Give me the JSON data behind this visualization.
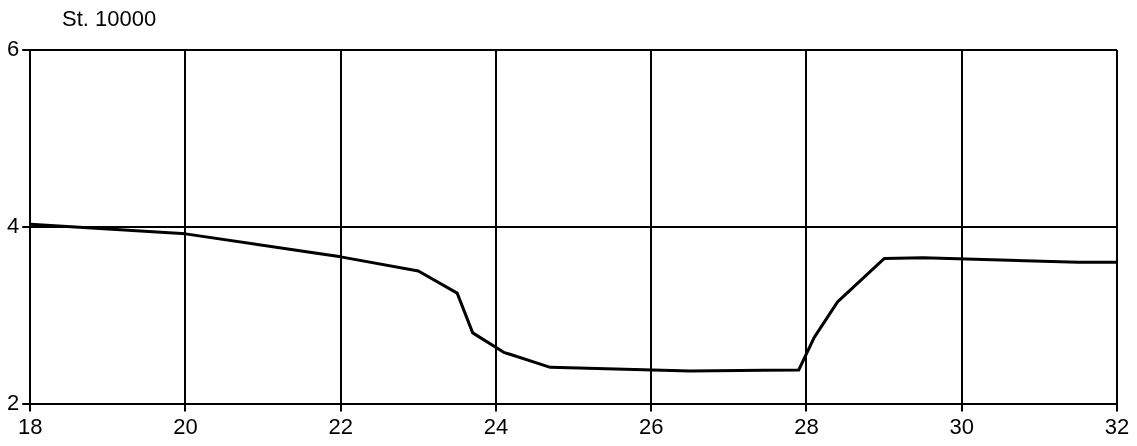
{
  "chart_data": {
    "type": "line",
    "title": "St. 10000",
    "x": [
      18,
      20,
      22,
      23,
      23.5,
      23.7,
      24.1,
      24.7,
      26.5,
      27.9,
      28.1,
      28.4,
      29,
      29.5,
      31.5,
      32
    ],
    "series": [
      {
        "color": "#000000",
        "values": [
          4.03,
          3.92,
          3.66,
          3.5,
          3.25,
          2.8,
          2.58,
          2.41,
          2.37,
          2.38,
          2.75,
          3.15,
          3.64,
          3.65,
          3.6,
          3.6
        ]
      }
    ],
    "xlim": [
      18,
      32
    ],
    "xticks": [
      18,
      20,
      22,
      24,
      26,
      28,
      30,
      32
    ],
    "ylim": [
      2,
      6
    ],
    "yticks": [
      2,
      4,
      6
    ],
    "grid": true,
    "legend": false,
    "marker": "none",
    "line_style": "solid"
  }
}
